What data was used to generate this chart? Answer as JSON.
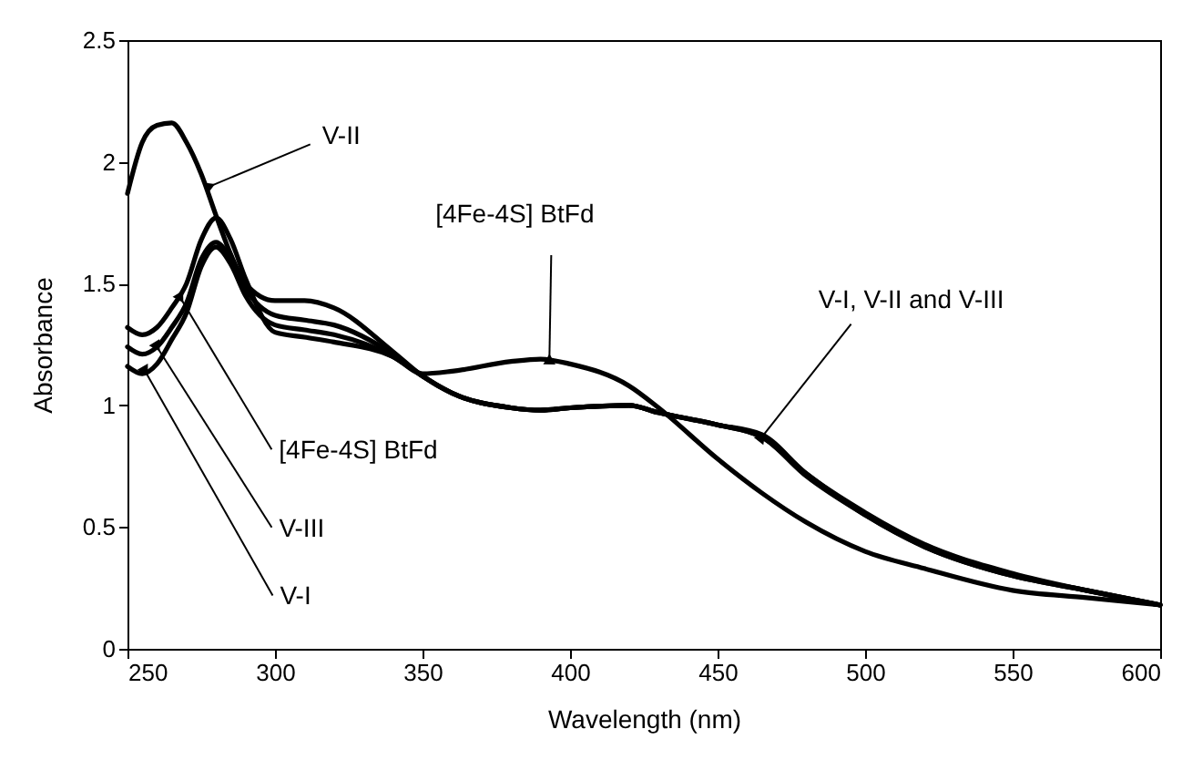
{
  "chart_data": {
    "type": "line",
    "xlabel": "Wavelength (nm)",
    "ylabel": "Absorbance",
    "x": [
      250,
      255,
      260,
      265,
      270,
      275,
      280,
      285,
      290,
      300,
      310,
      320,
      340,
      350,
      360,
      380,
      390,
      400,
      420,
      430,
      450,
      465,
      480,
      500,
      520,
      550,
      575,
      600
    ],
    "series": [
      {
        "color": "#000000",
        "values": [
          1.87,
          2.08,
          2.15,
          2.16,
          2.08,
          1.95,
          1.78,
          1.62,
          1.5,
          1.43,
          1.43,
          1.4,
          1.22,
          1.12,
          1.05,
          0.99,
          0.98,
          0.99,
          1.0,
          0.97,
          0.92,
          0.87,
          0.72,
          0.55,
          0.42,
          0.3,
          0.24,
          0.18
        ]
      },
      {
        "color": "#000000",
        "values": [
          1.16,
          1.13,
          1.17,
          1.27,
          1.38,
          1.57,
          1.65,
          1.58,
          1.45,
          1.33,
          1.31,
          1.29,
          1.2,
          1.12,
          1.05,
          0.99,
          0.98,
          0.99,
          1.0,
          0.97,
          0.92,
          0.87,
          0.71,
          0.55,
          0.42,
          0.3,
          0.24,
          0.18
        ]
      },
      {
        "color": "#000000",
        "values": [
          1.24,
          1.21,
          1.24,
          1.32,
          1.42,
          1.6,
          1.67,
          1.6,
          1.48,
          1.37,
          1.35,
          1.33,
          1.21,
          1.12,
          1.05,
          0.99,
          0.98,
          0.99,
          1.0,
          0.97,
          0.92,
          0.88,
          0.72,
          0.56,
          0.43,
          0.31,
          0.24,
          0.18
        ]
      },
      {
        "color": "#000000",
        "values": [
          1.32,
          1.29,
          1.32,
          1.4,
          1.5,
          1.68,
          1.77,
          1.68,
          1.52,
          1.3,
          1.28,
          1.26,
          1.2,
          1.13,
          1.14,
          1.18,
          1.19,
          1.17,
          1.08,
          0.99,
          0.78,
          0.64,
          0.52,
          0.4,
          0.33,
          0.24,
          0.21,
          0.18
        ]
      }
    ],
    "annotations": [
      {
        "text": "V-II",
        "x": 278,
        "y": 1.9
      },
      {
        "text": "[4Fe-4S] BtFd",
        "x": 393,
        "y": 1.19
      },
      {
        "text": "V-I, V-II and V-III",
        "x": 465,
        "y": 0.87
      },
      {
        "text": "[4Fe-4S] BtFd",
        "x": 268,
        "y": 1.44
      },
      {
        "text": "V-III",
        "x": 260,
        "y": 1.24
      },
      {
        "text": "V-I",
        "x": 256,
        "y": 1.14
      }
    ],
    "xlim": [
      250,
      600
    ],
    "xticks": [
      250,
      300,
      350,
      400,
      450,
      500,
      550,
      600
    ],
    "ylim": [
      0,
      2.5
    ],
    "yticks": [
      0,
      0.5,
      1,
      1.5,
      2,
      2.5
    ],
    "grid": false,
    "legend": false,
    "marker": "none",
    "line_style": "solid"
  }
}
